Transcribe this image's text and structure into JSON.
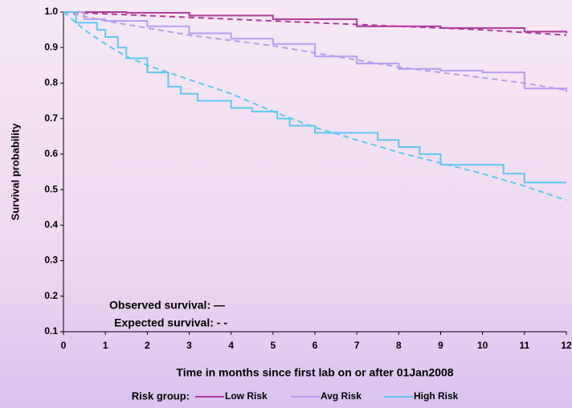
{
  "chart_data": {
    "type": "survival",
    "y_label": "Survival probability",
    "x_label": "Time in months since first lab on or after 01Jan2008",
    "legend_title": "Risk group:",
    "annotations": [
      "Observed survival: —",
      "Expected survival: - -"
    ],
    "xlim": [
      0,
      12
    ],
    "xticks": [
      0,
      1,
      2,
      3,
      4,
      5,
      6,
      7,
      8,
      9,
      10,
      11,
      12
    ],
    "ylim": [
      0.1,
      1.0
    ],
    "yticks": [
      0.1,
      0.2,
      0.3,
      0.4,
      0.5,
      0.6,
      0.7,
      0.8,
      0.9,
      {
        "value": 1.0,
        "label": "1.0"
      }
    ],
    "series": [
      {
        "name": "Low Risk",
        "color": "#b0389c",
        "observed": {
          "x": [
            0,
            1.5,
            3,
            5,
            7,
            9,
            11,
            12
          ],
          "values": [
            1.0,
            0.998,
            0.99,
            0.98,
            0.96,
            0.955,
            0.945,
            0.94
          ]
        },
        "expected": {
          "x": [
            0,
            2,
            4,
            6,
            8,
            10,
            12
          ],
          "values": [
            1.0,
            0.99,
            0.98,
            0.97,
            0.96,
            0.95,
            0.935
          ]
        }
      },
      {
        "name": "Avg Risk",
        "color": "#b49ef0",
        "observed": {
          "x": [
            0,
            0.5,
            1,
            2,
            3,
            4,
            5,
            6,
            7,
            8,
            9,
            10,
            11,
            12
          ],
          "values": [
            1.0,
            0.98,
            0.975,
            0.96,
            0.94,
            0.925,
            0.91,
            0.875,
            0.855,
            0.84,
            0.835,
            0.83,
            0.785,
            0.775
          ]
        },
        "expected": {
          "x": [
            0,
            1,
            2,
            3,
            4,
            5,
            6,
            7,
            8,
            9,
            10,
            11,
            12
          ],
          "values": [
            1.0,
            0.975,
            0.955,
            0.935,
            0.92,
            0.905,
            0.885,
            0.865,
            0.845,
            0.83,
            0.815,
            0.8,
            0.78
          ]
        }
      },
      {
        "name": "High Risk",
        "color": "#5cc8f0",
        "observed": {
          "x": [
            0,
            0.3,
            0.8,
            1,
            1.3,
            1.5,
            2,
            2.5,
            2.8,
            3.2,
            4,
            4.5,
            5.1,
            5.4,
            6,
            7,
            7.5,
            8,
            8.5,
            9,
            10,
            10.5,
            11,
            12
          ],
          "values": [
            1.0,
            0.97,
            0.95,
            0.93,
            0.9,
            0.87,
            0.83,
            0.79,
            0.77,
            0.75,
            0.73,
            0.72,
            0.7,
            0.68,
            0.66,
            0.66,
            0.64,
            0.62,
            0.6,
            0.57,
            0.57,
            0.545,
            0.52,
            0.52
          ]
        },
        "expected": {
          "x": [
            0,
            0.5,
            1,
            1.5,
            2,
            3,
            4,
            5,
            6,
            7,
            8,
            9,
            10,
            11,
            12
          ],
          "values": [
            1.0,
            0.95,
            0.91,
            0.875,
            0.85,
            0.81,
            0.77,
            0.72,
            0.675,
            0.64,
            0.605,
            0.575,
            0.545,
            0.51,
            0.47
          ]
        }
      }
    ]
  }
}
